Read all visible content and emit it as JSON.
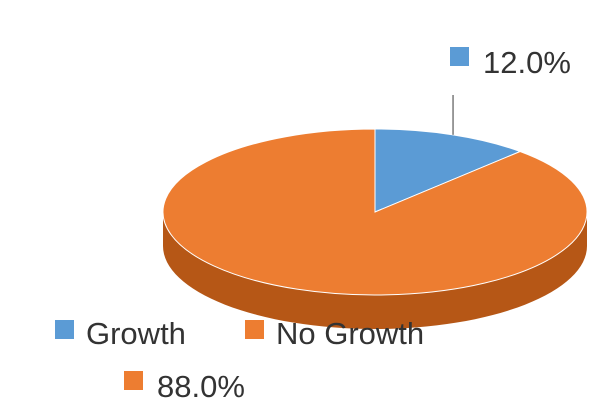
{
  "chart_data": {
    "type": "pie",
    "title": "",
    "style": "3d",
    "categories": [
      "Growth",
      "No Growth"
    ],
    "values": [
      12.0,
      88.0
    ],
    "labels": [
      "12.0%",
      "88.0%"
    ],
    "colors": [
      "#5b9bd5",
      "#ed7d31"
    ],
    "side_colors": [
      "#3d78ad",
      "#b65716"
    ],
    "legend": {
      "placement": "bottom-left",
      "items": [
        "Growth",
        "No Growth"
      ]
    }
  }
}
